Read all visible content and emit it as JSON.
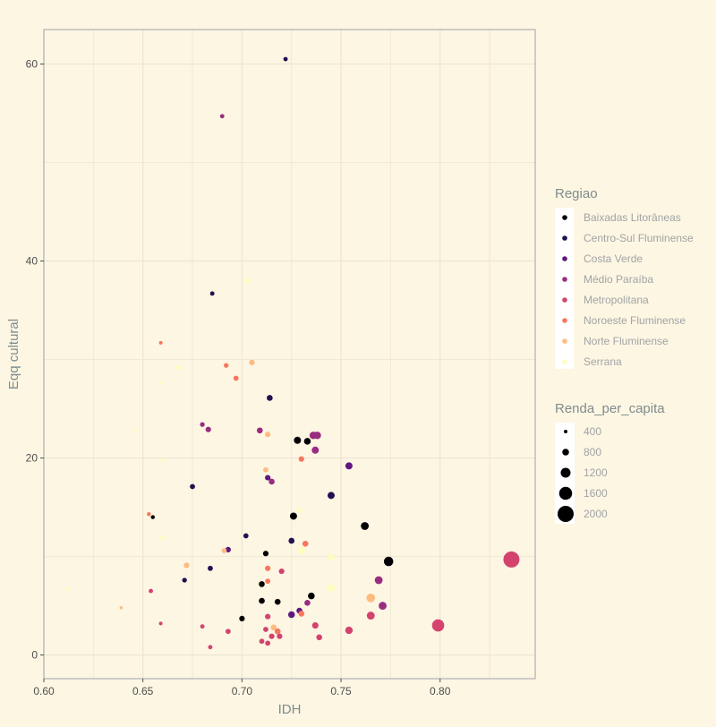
{
  "chart_data": {
    "type": "scatter",
    "title": "",
    "xlabel": "IDH",
    "ylabel": "Eqq cultural",
    "xlim": [
      0.6,
      0.848
    ],
    "ylim": [
      -2.4,
      63.5
    ],
    "x_ticks": [
      0.6,
      0.65,
      0.7,
      0.75,
      0.8
    ],
    "x_tick_labels": [
      "0.60",
      "0.65",
      "0.70",
      "0.75",
      "0.80"
    ],
    "y_ticks": [
      0,
      20,
      40,
      60
    ],
    "y_tick_labels": [
      "0",
      "20",
      "40",
      "60"
    ],
    "grid": true,
    "legend_placement": "right",
    "color_legend": {
      "title": "Regiao",
      "entries": [
        {
          "label": "Baixadas Litorâneas",
          "color": "#000004"
        },
        {
          "label": "Centro-Sul Fluminense",
          "color": "#221150"
        },
        {
          "label": "Costa Verde",
          "color": "#5f187f"
        },
        {
          "label": "Médio Paraíba",
          "color": "#982d80"
        },
        {
          "label": "Metropolitana",
          "color": "#d3436e"
        },
        {
          "label": "Noroeste Fluminense",
          "color": "#f8765c"
        },
        {
          "label": "Norte Fluminense",
          "color": "#febb81"
        },
        {
          "label": "Serrana",
          "color": "#fcfdbf"
        }
      ]
    },
    "size_legend": {
      "title": "Renda_per_capita",
      "entries": [
        {
          "label": "400",
          "value": 400
        },
        {
          "label": "800",
          "value": 800
        },
        {
          "label": "1200",
          "value": 1200
        },
        {
          "label": "1600",
          "value": 1600
        },
        {
          "label": "2000",
          "value": 2000
        }
      ]
    },
    "points": [
      {
        "x": 0.722,
        "y": 60.5,
        "r": "Centro-Sul Fluminense",
        "s": 500
      },
      {
        "x": 0.69,
        "y": 54.7,
        "r": "Médio Paraíba",
        "s": 500
      },
      {
        "x": 0.703,
        "y": 38.0,
        "r": "Serrana",
        "s": 600
      },
      {
        "x": 0.685,
        "y": 36.7,
        "r": "Centro-Sul Fluminense",
        "s": 500
      },
      {
        "x": 0.659,
        "y": 31.7,
        "r": "Noroeste Fluminense",
        "s": 400
      },
      {
        "x": 0.705,
        "y": 29.7,
        "r": "Norte Fluminense",
        "s": 650
      },
      {
        "x": 0.692,
        "y": 29.4,
        "r": "Noroeste Fluminense",
        "s": 550
      },
      {
        "x": 0.668,
        "y": 29.2,
        "r": "Serrana",
        "s": 550
      },
      {
        "x": 0.697,
        "y": 28.1,
        "r": "Noroeste Fluminense",
        "s": 600
      },
      {
        "x": 0.659,
        "y": 27.6,
        "r": "Serrana",
        "s": 400
      },
      {
        "x": 0.714,
        "y": 26.1,
        "r": "Centro-Sul Fluminense",
        "s": 700
      },
      {
        "x": 0.68,
        "y": 23.4,
        "r": "Médio Paraíba",
        "s": 550
      },
      {
        "x": 0.683,
        "y": 22.9,
        "r": "Médio Paraíba",
        "s": 650
      },
      {
        "x": 0.709,
        "y": 22.8,
        "r": "Médio Paraíba",
        "s": 700
      },
      {
        "x": 0.647,
        "y": 22.7,
        "r": "Serrana",
        "s": 350
      },
      {
        "x": 0.713,
        "y": 22.4,
        "r": "Norte Fluminense",
        "s": 650
      },
      {
        "x": 0.736,
        "y": 22.3,
        "r": "Médio Paraíba",
        "s": 900
      },
      {
        "x": 0.738,
        "y": 22.3,
        "r": "Médio Paraíba",
        "s": 900
      },
      {
        "x": 0.728,
        "y": 21.8,
        "r": "Baixadas Litorâneas",
        "s": 850
      },
      {
        "x": 0.733,
        "y": 21.7,
        "r": "Baixadas Litorâneas",
        "s": 800
      },
      {
        "x": 0.737,
        "y": 20.8,
        "r": "Médio Paraíba",
        "s": 850
      },
      {
        "x": 0.73,
        "y": 19.9,
        "r": "Noroeste Fluminense",
        "s": 650
      },
      {
        "x": 0.66,
        "y": 19.8,
        "r": "Serrana",
        "s": 450
      },
      {
        "x": 0.754,
        "y": 19.2,
        "r": "Costa Verde",
        "s": 850
      },
      {
        "x": 0.712,
        "y": 18.8,
        "r": "Norte Fluminense",
        "s": 600
      },
      {
        "x": 0.713,
        "y": 18.0,
        "r": "Costa Verde",
        "s": 650
      },
      {
        "x": 0.715,
        "y": 17.6,
        "r": "Médio Paraíba",
        "s": 700
      },
      {
        "x": 0.675,
        "y": 17.1,
        "r": "Centro-Sul Fluminense",
        "s": 600
      },
      {
        "x": 0.745,
        "y": 16.2,
        "r": "Centro-Sul Fluminense",
        "s": 850
      },
      {
        "x": 0.729,
        "y": 14.7,
        "r": "Serrana",
        "s": 650
      },
      {
        "x": 0.653,
        "y": 14.3,
        "r": "Noroeste Fluminense",
        "s": 450
      },
      {
        "x": 0.655,
        "y": 14.0,
        "r": "Baixadas Litorâneas",
        "s": 450
      },
      {
        "x": 0.726,
        "y": 14.1,
        "r": "Baixadas Litorâneas",
        "s": 850
      },
      {
        "x": 0.762,
        "y": 13.1,
        "r": "Baixadas Litorâneas",
        "s": 950
      },
      {
        "x": 0.702,
        "y": 12.1,
        "r": "Centro-Sul Fluminense",
        "s": 600
      },
      {
        "x": 0.66,
        "y": 11.9,
        "r": "Serrana",
        "s": 550
      },
      {
        "x": 0.725,
        "y": 11.6,
        "r": "Centro-Sul Fluminense",
        "s": 700
      },
      {
        "x": 0.732,
        "y": 11.3,
        "r": "Noroeste Fluminense",
        "s": 700
      },
      {
        "x": 0.693,
        "y": 10.7,
        "r": "Costa Verde",
        "s": 650
      },
      {
        "x": 0.691,
        "y": 10.6,
        "r": "Norte Fluminense",
        "s": 600
      },
      {
        "x": 0.73,
        "y": 10.6,
        "r": "Serrana",
        "s": 850
      },
      {
        "x": 0.712,
        "y": 10.3,
        "r": "Baixadas Litorâneas",
        "s": 650
      },
      {
        "x": 0.745,
        "y": 9.9,
        "r": "Serrana",
        "s": 800
      },
      {
        "x": 0.774,
        "y": 9.5,
        "r": "Baixadas Litorâneas",
        "s": 1150
      },
      {
        "x": 0.836,
        "y": 9.7,
        "r": "Metropolitana",
        "s": 2000
      },
      {
        "x": 0.672,
        "y": 9.1,
        "r": "Norte Fluminense",
        "s": 650
      },
      {
        "x": 0.713,
        "y": 8.8,
        "r": "Noroeste Fluminense",
        "s": 650
      },
      {
        "x": 0.684,
        "y": 8.8,
        "r": "Centro-Sul Fluminense",
        "s": 600
      },
      {
        "x": 0.72,
        "y": 8.5,
        "r": "Metropolitana",
        "s": 650
      },
      {
        "x": 0.671,
        "y": 7.6,
        "r": "Centro-Sul Fluminense",
        "s": 550
      },
      {
        "x": 0.769,
        "y": 7.6,
        "r": "Médio Paraíba",
        "s": 950
      },
      {
        "x": 0.713,
        "y": 7.5,
        "r": "Noroeste Fluminense",
        "s": 600
      },
      {
        "x": 0.71,
        "y": 7.2,
        "r": "Baixadas Litorâneas",
        "s": 700
      },
      {
        "x": 0.745,
        "y": 6.8,
        "r": "Serrana",
        "s": 900
      },
      {
        "x": 0.612,
        "y": 6.7,
        "r": "Serrana",
        "s": 400
      },
      {
        "x": 0.654,
        "y": 6.5,
        "r": "Metropolitana",
        "s": 500
      },
      {
        "x": 0.735,
        "y": 6.0,
        "r": "Baixadas Litorâneas",
        "s": 800
      },
      {
        "x": 0.765,
        "y": 5.8,
        "r": "Norte Fluminense",
        "s": 1050
      },
      {
        "x": 0.71,
        "y": 5.5,
        "r": "Baixadas Litorâneas",
        "s": 700
      },
      {
        "x": 0.718,
        "y": 5.4,
        "r": "Baixadas Litorâneas",
        "s": 700
      },
      {
        "x": 0.733,
        "y": 5.3,
        "r": "Médio Paraíba",
        "s": 700
      },
      {
        "x": 0.771,
        "y": 5.0,
        "r": "Médio Paraíba",
        "s": 950
      },
      {
        "x": 0.639,
        "y": 4.8,
        "r": "Norte Fluminense",
        "s": 350
      },
      {
        "x": 0.729,
        "y": 4.5,
        "r": "Costa Verde",
        "s": 700
      },
      {
        "x": 0.73,
        "y": 4.2,
        "r": "Noroeste Fluminense",
        "s": 700
      },
      {
        "x": 0.725,
        "y": 4.1,
        "r": "Costa Verde",
        "s": 800
      },
      {
        "x": 0.765,
        "y": 4.0,
        "r": "Metropolitana",
        "s": 950
      },
      {
        "x": 0.713,
        "y": 3.9,
        "r": "Metropolitana",
        "s": 650
      },
      {
        "x": 0.7,
        "y": 3.7,
        "r": "Baixadas Litorâneas",
        "s": 650
      },
      {
        "x": 0.659,
        "y": 3.2,
        "r": "Metropolitana",
        "s": 400
      },
      {
        "x": 0.737,
        "y": 3.0,
        "r": "Metropolitana",
        "s": 750
      },
      {
        "x": 0.799,
        "y": 3.0,
        "r": "Metropolitana",
        "s": 1500
      },
      {
        "x": 0.68,
        "y": 2.9,
        "r": "Metropolitana",
        "s": 500
      },
      {
        "x": 0.716,
        "y": 2.8,
        "r": "Norte Fluminense",
        "s": 700
      },
      {
        "x": 0.712,
        "y": 2.6,
        "r": "Metropolitana",
        "s": 600
      },
      {
        "x": 0.718,
        "y": 2.4,
        "r": "Noroeste Fluminense",
        "s": 700
      },
      {
        "x": 0.754,
        "y": 2.5,
        "r": "Metropolitana",
        "s": 900
      },
      {
        "x": 0.693,
        "y": 2.4,
        "r": "Metropolitana",
        "s": 600
      },
      {
        "x": 0.715,
        "y": 1.9,
        "r": "Metropolitana",
        "s": 650
      },
      {
        "x": 0.719,
        "y": 1.9,
        "r": "Metropolitana",
        "s": 650
      },
      {
        "x": 0.739,
        "y": 1.8,
        "r": "Metropolitana",
        "s": 700
      },
      {
        "x": 0.71,
        "y": 1.4,
        "r": "Metropolitana",
        "s": 600
      },
      {
        "x": 0.713,
        "y": 1.2,
        "r": "Metropolitana",
        "s": 600
      },
      {
        "x": 0.684,
        "y": 0.8,
        "r": "Metropolitana",
        "s": 500
      }
    ]
  }
}
